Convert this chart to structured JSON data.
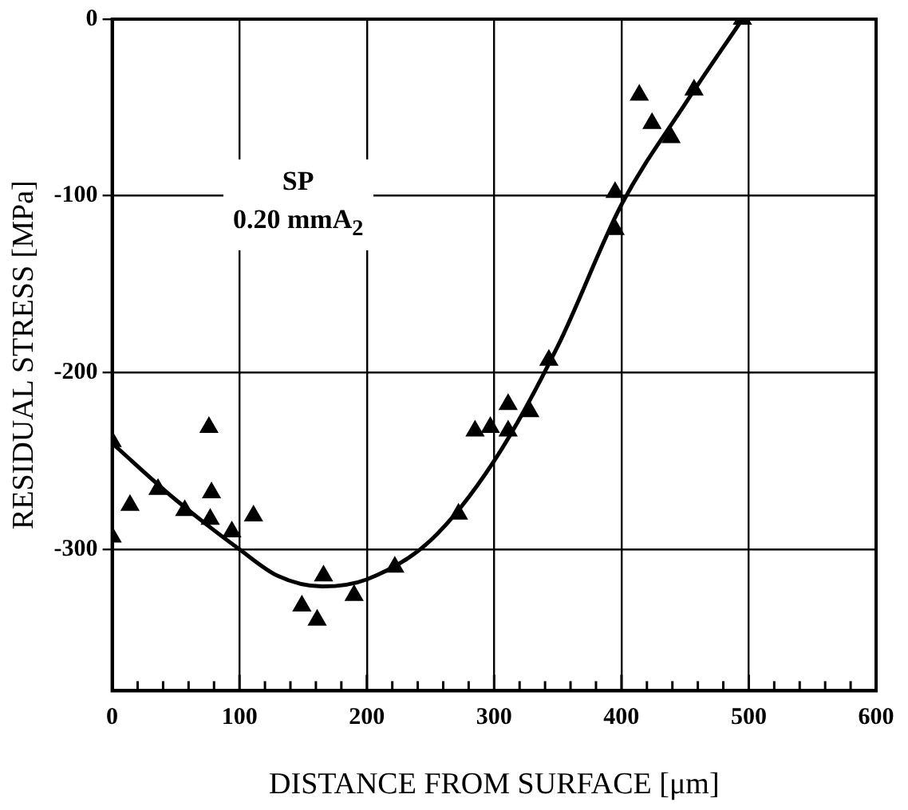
{
  "chart_data": {
    "type": "scatter",
    "xlabel": "DISTANCE FROM SURFACE [μm]",
    "ylabel": "RESIDUAL STRESS [MPa]",
    "annotations": [
      "SP",
      "0.20 mmA$_{2}$"
    ],
    "xlim": [
      0,
      600
    ],
    "ylim": [
      -380,
      0
    ],
    "xticks": [
      0,
      {
        "value": 20,
        "label": null
      },
      {
        "value": 40,
        "label": null
      },
      {
        "value": 60,
        "label": null
      },
      {
        "value": 80,
        "label": null
      },
      100,
      {
        "value": 120,
        "label": null
      },
      {
        "value": 140,
        "label": null
      },
      {
        "value": 160,
        "label": null
      },
      {
        "value": 180,
        "label": null
      },
      200,
      {
        "value": 220,
        "label": null
      },
      {
        "value": 240,
        "label": null
      },
      {
        "value": 260,
        "label": null
      },
      {
        "value": 280,
        "label": null
      },
      300,
      {
        "value": 320,
        "label": null
      },
      {
        "value": 340,
        "label": null
      },
      {
        "value": 360,
        "label": null
      },
      {
        "value": 380,
        "label": null
      },
      400,
      {
        "value": 420,
        "label": null
      },
      {
        "value": 440,
        "label": null
      },
      {
        "value": 460,
        "label": null
      },
      {
        "value": 480,
        "label": null
      },
      500,
      {
        "value": 520,
        "label": null
      },
      {
        "value": 540,
        "label": null
      },
      {
        "value": 560,
        "label": null
      },
      {
        "value": 580,
        "label": null
      },
      600
    ],
    "yticks": [
      0,
      -100,
      -200,
      -300
    ],
    "grid": true,
    "legend": false,
    "series": [
      {
        "type": "scatter",
        "marker": "triangle",
        "color": "#000000",
        "x": [
          0,
          0,
          14,
          36,
          57,
          76,
          78,
          77,
          94,
          111,
          149,
          166,
          161,
          190,
          222,
          272,
          285,
          297,
          311,
          311,
          328,
          343,
          395,
          395,
          414,
          424,
          439,
          457,
          495
        ],
        "values": [
          -239,
          -293,
          -275,
          -266,
          -278,
          -231,
          -268,
          -283,
          -290,
          -281,
          -332,
          -315,
          -340,
          -326,
          -310,
          -280,
          -233,
          -231,
          -218,
          -233,
          -222,
          -193,
          -119,
          -98,
          -43,
          -59,
          -67,
          -40,
          0
        ]
      },
      {
        "type": "line",
        "marker": "none",
        "line_style": "solid",
        "color": "#000000",
        "x": [
          0,
          50,
          100,
          130,
          165,
          200,
          250,
          300,
          350,
          400,
          450,
          495
        ],
        "values": [
          -240,
          -272,
          -300,
          -315,
          -321,
          -317,
          -295,
          -250,
          -185,
          -105,
          -48,
          0
        ]
      }
    ]
  }
}
